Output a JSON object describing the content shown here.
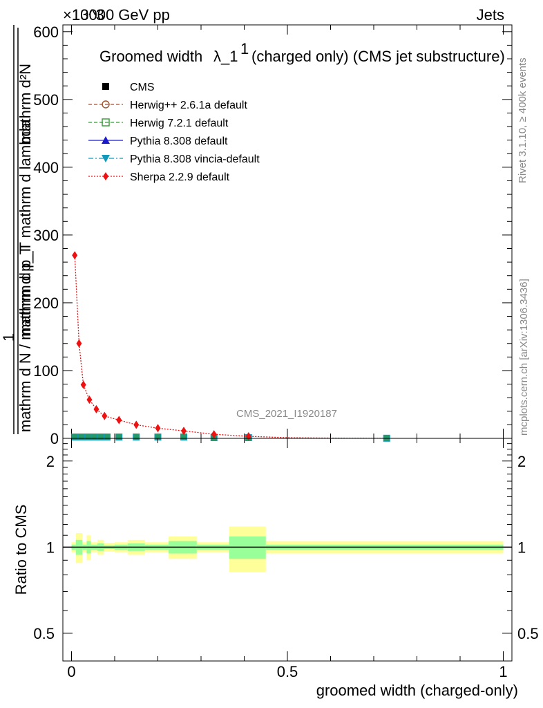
{
  "header": {
    "energy_label": "13000 GeV pp",
    "process_label": "Jets",
    "exponent_label": "×10^3"
  },
  "side_labels": {
    "rivet": "Rivet 3.1.10, ≥ 400k events",
    "mcplots": "mcplots.cern.ch [arXiv:1306.3436]"
  },
  "watermark": "CMS_2021_I1920187",
  "chart_data": [
    {
      "panel": "main",
      "type": "line",
      "title": "Groomed width λ_1^1 (charged only) (CMS jet substructure)",
      "title_main": "Groomed width",
      "title_lambda": "λ_1",
      "title_sup": "1",
      "title_rest": "(charged only) (CMS jet substructure)",
      "ylabel_numerator": "mathrm d²N",
      "ylabel_numerator_2": "mathrm d p_T mathrm d lambda",
      "ylabel_one": "1",
      "ylabel_denominator": "mathrm d N / mathrm d p_T",
      "xlim": [
        -0.02,
        1.02
      ],
      "ylim": [
        0,
        610
      ],
      "y_unit_scale": "×10^3",
      "yticks": [
        0,
        100,
        200,
        300,
        400,
        500,
        600
      ],
      "ytick_labels": [
        "0",
        "100",
        "200",
        "300",
        "400",
        "500",
        "600"
      ],
      "legend_position": "top-left",
      "legend": [
        {
          "name": "CMS",
          "marker": "square-filled",
          "color": "#000000",
          "line": "none"
        },
        {
          "name": "Herwig++ 2.6.1a default",
          "marker": "circle-open",
          "color": "#a0522d",
          "line": "dashed"
        },
        {
          "name": "Herwig 7.2.1 default",
          "marker": "square-open",
          "color": "#339933",
          "line": "dashed"
        },
        {
          "name": "Pythia 8.308 default",
          "marker": "triangle-up",
          "color": "#1a1acc",
          "line": "solid"
        },
        {
          "name": "Pythia 8.308 vincia-default",
          "marker": "triangle-down",
          "color": "#1199bb",
          "line": "dashdot"
        },
        {
          "name": "Sherpa 2.2.9 default",
          "marker": "diamond",
          "color": "#ee1111",
          "line": "dotted"
        }
      ],
      "cms_bins": {
        "x": [
          0.0075,
          0.0225,
          0.0375,
          0.0525,
          0.0675,
          0.0825,
          0.11,
          0.15,
          0.2,
          0.26,
          0.33,
          0.41,
          0.73
        ],
        "y": [
          2,
          2,
          2,
          2,
          2,
          2,
          2,
          2,
          2,
          2,
          1,
          1,
          0.2
        ]
      },
      "series": [
        {
          "name": "Sherpa 2.2.9 default",
          "x": [
            0.0075,
            0.0175,
            0.0275,
            0.0415,
            0.0575,
            0.0765,
            0.11,
            0.15,
            0.2,
            0.26,
            0.33,
            0.41,
            0.5,
            0.58,
            0.66,
            0.73
          ],
          "y": [
            270,
            140,
            79,
            57,
            43,
            33,
            27,
            20,
            15,
            11,
            6,
            3,
            1,
            0.5,
            0.2,
            0.1
          ]
        }
      ]
    },
    {
      "panel": "ratio",
      "type": "area",
      "ylabel": "Ratio to CMS",
      "xlabel": "groomed width (charged-only)",
      "xlim": [
        -0.02,
        1.02
      ],
      "ylim": [
        0.4,
        2.4
      ],
      "yscale": "log",
      "yticks": [
        0.5,
        1,
        2
      ],
      "ytick_labels": [
        "0.5",
        "1",
        "2"
      ],
      "xticks": [
        0,
        0.5,
        1
      ],
      "xtick_labels": [
        "0",
        "0.5",
        "1"
      ],
      "reference": 1,
      "bands": [
        {
          "x0": 0.0,
          "x1": 0.01,
          "yellow": [
            0.96,
            1.04
          ],
          "green": [
            0.98,
            1.02
          ]
        },
        {
          "x0": 0.01,
          "x1": 0.025,
          "yellow": [
            0.88,
            1.12
          ],
          "green": [
            0.94,
            1.06
          ]
        },
        {
          "x0": 0.025,
          "x1": 0.035,
          "yellow": [
            0.96,
            1.04
          ],
          "green": [
            0.98,
            1.02
          ]
        },
        {
          "x0": 0.035,
          "x1": 0.045,
          "yellow": [
            0.9,
            1.1
          ],
          "green": [
            0.95,
            1.05
          ]
        },
        {
          "x0": 0.045,
          "x1": 0.06,
          "yellow": [
            0.96,
            1.04
          ],
          "green": [
            0.98,
            1.02
          ]
        },
        {
          "x0": 0.06,
          "x1": 0.075,
          "yellow": [
            0.94,
            1.06
          ],
          "green": [
            0.97,
            1.03
          ]
        },
        {
          "x0": 0.075,
          "x1": 0.1,
          "yellow": [
            0.965,
            1.035
          ],
          "green": [
            0.985,
            1.015
          ]
        },
        {
          "x0": 0.1,
          "x1": 0.13,
          "yellow": [
            0.96,
            1.04
          ],
          "green": [
            0.98,
            1.02
          ]
        },
        {
          "x0": 0.13,
          "x1": 0.17,
          "yellow": [
            0.94,
            1.06
          ],
          "green": [
            0.97,
            1.03
          ]
        },
        {
          "x0": 0.17,
          "x1": 0.225,
          "yellow": [
            0.96,
            1.04
          ],
          "green": [
            0.98,
            1.02
          ]
        },
        {
          "x0": 0.225,
          "x1": 0.29,
          "yellow": [
            0.91,
            1.09
          ],
          "green": [
            0.95,
            1.05
          ]
        },
        {
          "x0": 0.29,
          "x1": 0.365,
          "yellow": [
            0.96,
            1.04
          ],
          "green": [
            0.98,
            1.02
          ]
        },
        {
          "x0": 0.365,
          "x1": 0.45,
          "yellow": [
            0.82,
            1.18
          ],
          "green": [
            0.91,
            1.09
          ]
        },
        {
          "x0": 0.45,
          "x1": 1.0,
          "yellow": [
            0.95,
            1.05
          ],
          "green": [
            0.98,
            1.02
          ]
        }
      ]
    }
  ]
}
